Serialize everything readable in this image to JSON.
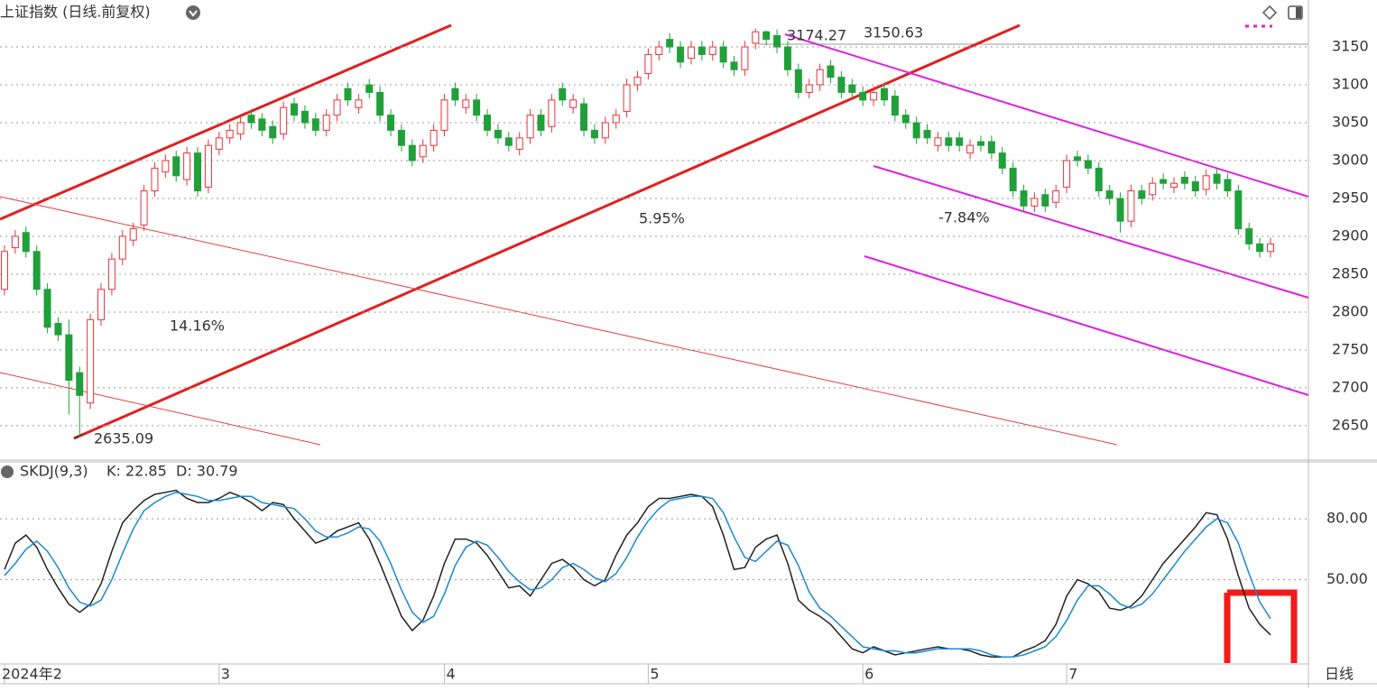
{
  "header": {
    "title": "上证指数 (日线.前复权)",
    "period_label": "日线"
  },
  "chart_data": [
    {
      "type": "candlestick",
      "categories": [
        "2024年2",
        null,
        null,
        null,
        null,
        null,
        null,
        null,
        null,
        null,
        null,
        null,
        null,
        null,
        null,
        null,
        null,
        null,
        null,
        null,
        "3",
        null,
        null,
        null,
        null,
        null,
        null,
        null,
        null,
        null,
        null,
        null,
        null,
        null,
        null,
        null,
        null,
        null,
        null,
        null,
        null,
        "4",
        null,
        null,
        null,
        null,
        null,
        null,
        null,
        null,
        null,
        null,
        null,
        null,
        null,
        null,
        null,
        null,
        null,
        null,
        "5",
        null,
        null,
        null,
        null,
        null,
        null,
        null,
        null,
        null,
        null,
        null,
        null,
        null,
        null,
        null,
        null,
        null,
        null,
        null,
        "6",
        null,
        null,
        null,
        null,
        null,
        null,
        null,
        null,
        null,
        null,
        null,
        null,
        null,
        null,
        null,
        null,
        null,
        null,
        "7",
        null,
        null,
        null,
        null,
        null,
        null,
        null,
        null,
        null,
        null,
        null,
        null,
        null,
        null,
        null,
        null,
        null,
        null,
        null
      ],
      "open": [
        2830,
        2885,
        2905,
        2880,
        2830,
        2785,
        2770,
        2720,
        2680,
        2790,
        2830,
        2870,
        2895,
        2915,
        2960,
        2985,
        3005,
        2975,
        3010,
        2965,
        3015,
        3030,
        3035,
        3060,
        3055,
        3045,
        3035,
        3075,
        3065,
        3055,
        3040,
        3060,
        3095,
        3070,
        3100,
        3090,
        3060,
        3040,
        3020,
        3005,
        3020,
        3040,
        3095,
        3070,
        3080,
        3060,
        3040,
        3030,
        3015,
        3030,
        3060,
        3045,
        3095,
        3070,
        3075,
        3040,
        3030,
        3050,
        3065,
        3100,
        3115,
        3140,
        3160,
        3150,
        3135,
        3150,
        3140,
        3150,
        3130,
        3120,
        3155,
        3170,
        3165,
        3150,
        3120,
        3090,
        3100,
        3125,
        3110,
        3100,
        3090,
        3080,
        3095,
        3085,
        3060,
        3050,
        3040,
        3020,
        3030,
        3030,
        3010,
        3025,
        3025,
        3010,
        2990,
        2960,
        2940,
        2955,
        2945,
        2965,
        3005,
        3000,
        2990,
        2960,
        2950,
        2920,
        2960,
        2955,
        2975,
        2965,
        2978,
        2972,
        2962,
        2982,
        2975,
        2960,
        2910,
        2890,
        2880
      ],
      "high": [
        2888,
        2908,
        2913,
        2888,
        2838,
        2793,
        2790,
        2728,
        2798,
        2838,
        2878,
        2908,
        2918,
        2968,
        2998,
        3008,
        3013,
        3018,
        3018,
        3028,
        3038,
        3048,
        3058,
        3068,
        3063,
        3053,
        3078,
        3083,
        3073,
        3063,
        3068,
        3088,
        3103,
        3088,
        3108,
        3098,
        3068,
        3048,
        3028,
        3028,
        3048,
        3088,
        3103,
        3088,
        3088,
        3068,
        3048,
        3038,
        3038,
        3068,
        3068,
        3088,
        3103,
        3088,
        3083,
        3048,
        3058,
        3068,
        3108,
        3118,
        3148,
        3158,
        3168,
        3158,
        3158,
        3158,
        3158,
        3158,
        3138,
        3158,
        3174.27,
        3172,
        3173,
        3158,
        3128,
        3108,
        3128,
        3133,
        3118,
        3108,
        3098,
        3098,
        3103,
        3093,
        3068,
        3058,
        3048,
        3038,
        3038,
        3038,
        3028,
        3033,
        3033,
        3018,
        2998,
        2968,
        2958,
        2963,
        2968,
        3008,
        3013,
        3008,
        2998,
        2968,
        2958,
        2968,
        2968,
        2978,
        2983,
        2978,
        2986,
        2980,
        2988,
        2990,
        2983,
        2968,
        2918,
        2898,
        2898
      ],
      "low": [
        2822,
        2877,
        2872,
        2822,
        2772,
        2762,
        2665,
        2635.09,
        2672,
        2782,
        2822,
        2862,
        2887,
        2907,
        2952,
        2977,
        2972,
        2967,
        2952,
        2957,
        3007,
        3022,
        3027,
        3042,
        3032,
        3022,
        3027,
        3052,
        3042,
        3032,
        3032,
        3052,
        3072,
        3062,
        3082,
        3052,
        3032,
        3012,
        2992,
        2997,
        3012,
        3032,
        3072,
        3062,
        3052,
        3032,
        3022,
        3012,
        3007,
        3022,
        3032,
        3037,
        3072,
        3062,
        3032,
        3022,
        3022,
        3042,
        3057,
        3092,
        3107,
        3132,
        3142,
        3122,
        3127,
        3132,
        3132,
        3122,
        3112,
        3112,
        3147,
        3152,
        3142,
        3112,
        3082,
        3082,
        3092,
        3102,
        3082,
        3082,
        3072,
        3072,
        3072,
        3052,
        3042,
        3022,
        3022,
        3012,
        3012,
        3012,
        3002,
        3012,
        3002,
        2982,
        2952,
        2932,
        2932,
        2932,
        2937,
        2957,
        2992,
        2982,
        2952,
        2942,
        2905,
        2912,
        2942,
        2947,
        2962,
        2957,
        2962,
        2952,
        2954,
        2962,
        2952,
        2902,
        2882,
        2872,
        2872
      ],
      "close": [
        2880,
        2900,
        2880,
        2830,
        2780,
        2770,
        2710,
        2690,
        2790,
        2830,
        2870,
        2900,
        2910,
        2960,
        2990,
        3000,
        2980,
        3010,
        2960,
        3020,
        3030,
        3040,
        3050,
        3050,
        3040,
        3030,
        3070,
        3060,
        3050,
        3040,
        3060,
        3080,
        3080,
        3080,
        3090,
        3060,
        3040,
        3020,
        3000,
        3020,
        3040,
        3080,
        3080,
        3080,
        3060,
        3040,
        3030,
        3020,
        3030,
        3060,
        3040,
        3080,
        3080,
        3080,
        3040,
        3030,
        3050,
        3060,
        3100,
        3110,
        3140,
        3150,
        3150,
        3130,
        3150,
        3140,
        3150,
        3130,
        3120,
        3150,
        3170,
        3160,
        3150,
        3120,
        3090,
        3100,
        3120,
        3110,
        3090,
        3090,
        3080,
        3090,
        3080,
        3060,
        3050,
        3030,
        3030,
        3030,
        3020,
        3020,
        3020,
        3020,
        3010,
        2990,
        2960,
        2940,
        2950,
        2940,
        2960,
        3000,
        3000,
        2990,
        2960,
        2950,
        2920,
        2960,
        2950,
        2970,
        2970,
        2970,
        2970,
        2960,
        2980,
        2970,
        2960,
        2910,
        2890,
        2880,
        2890
      ],
      "up_color": "#e8343a",
      "down_color": "#21a03a",
      "ylim": [
        2607,
        3212
      ],
      "yticks": [
        2650,
        2700,
        2750,
        2800,
        2850,
        2900,
        2950,
        3000,
        3050,
        3100,
        3150
      ],
      "grid": true,
      "annotations": [
        "14.16%",
        "5.95%",
        "-7.84%",
        "2635.09",
        "3174.27",
        "3150.63"
      ]
    },
    {
      "type": "line",
      "title": "SKDJ(9,3)",
      "series": [
        {
          "name": "K: 22.85",
          "color": "#222222",
          "values": [
            55,
            68,
            72,
            66,
            55,
            46,
            38,
            34,
            38,
            48,
            64,
            78,
            84,
            89,
            92,
            93,
            94,
            90,
            88,
            88,
            90,
            93,
            91,
            88,
            84,
            88,
            87,
            80,
            74,
            68,
            70,
            74,
            76,
            78,
            70,
            58,
            45,
            32,
            25,
            30,
            42,
            58,
            70,
            70,
            68,
            62,
            54,
            46,
            47,
            42,
            50,
            58,
            60,
            56,
            50,
            47,
            50,
            62,
            72,
            78,
            86,
            90,
            90,
            91,
            92,
            91,
            86,
            72,
            55,
            56,
            66,
            70,
            72,
            58,
            40,
            35,
            32,
            28,
            22,
            16,
            14,
            17,
            15,
            13,
            14,
            15,
            16,
            17,
            16,
            16,
            15,
            13,
            12,
            12,
            12,
            15,
            17,
            20,
            28,
            42,
            50,
            48,
            44,
            36,
            35,
            37,
            42,
            50,
            58,
            64,
            70,
            76,
            83,
            82,
            70,
            52,
            36,
            28,
            22.85
          ]
        },
        {
          "name": "D: 30.79",
          "color": "#1a8ad4",
          "values": [
            52,
            58,
            65,
            69,
            64,
            56,
            46,
            39,
            37,
            40,
            50,
            63,
            75,
            84,
            88,
            91,
            93,
            92,
            91,
            89,
            89,
            90,
            91,
            91,
            88,
            87,
            86,
            85,
            80,
            74,
            71,
            71,
            73,
            76,
            75,
            69,
            58,
            45,
            34,
            29,
            32,
            43,
            57,
            66,
            69,
            67,
            61,
            54,
            49,
            45,
            46,
            50,
            56,
            58,
            55,
            51,
            49,
            53,
            61,
            71,
            79,
            85,
            89,
            90,
            91,
            91,
            90,
            83,
            71,
            61,
            59,
            64,
            69,
            67,
            57,
            44,
            36,
            32,
            27,
            22,
            17,
            16,
            15,
            15,
            14,
            14,
            15,
            16,
            16,
            16,
            16,
            15,
            13,
            12,
            12,
            13,
            15,
            17,
            22,
            30,
            40,
            47,
            47,
            43,
            38,
            36,
            38,
            43,
            50,
            57,
            64,
            70,
            76,
            80,
            78,
            68,
            53,
            39,
            30.79
          ]
        }
      ],
      "ylim": [
        9,
        108
      ],
      "yticks": [
        {
          "value": 50,
          "label": "50.00"
        },
        {
          "value": 80,
          "label": "80.00"
        }
      ],
      "grid": true
    }
  ]
}
